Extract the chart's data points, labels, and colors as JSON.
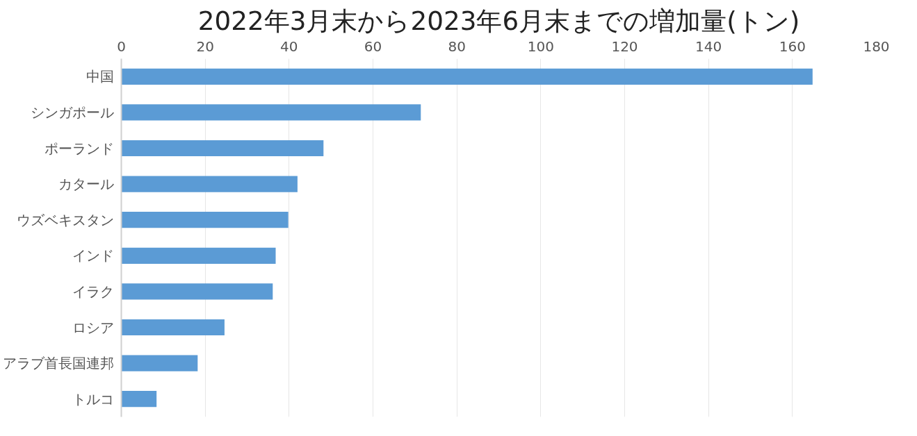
{
  "chart_data": {
    "type": "bar",
    "orientation": "horizontal",
    "title": "2022年3月末から2023年6月末までの増加量(トン)",
    "categories": [
      "中国",
      "シンガポール",
      "ポーランド",
      "カタール",
      "ウズベキスタン",
      "インド",
      "イラク",
      "ロシア",
      "アラブ首長国連邦",
      "トルコ"
    ],
    "values": [
      164.8,
      71.4,
      48.2,
      42.0,
      39.8,
      36.8,
      36.1,
      24.6,
      18.2,
      8.4
    ],
    "color": "#5b9bd5",
    "xlim": [
      0,
      180
    ],
    "xticks": [
      0,
      20,
      40,
      60,
      80,
      100,
      120,
      140,
      160,
      180
    ],
    "grid": "x"
  }
}
